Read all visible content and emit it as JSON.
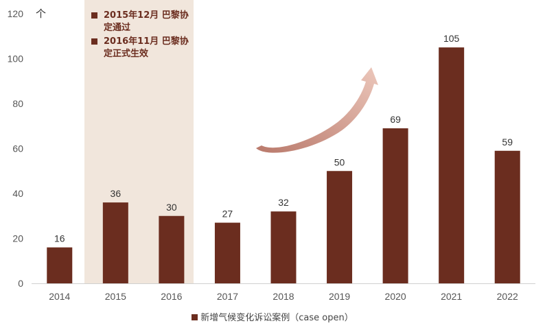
{
  "chart_data": {
    "type": "bar",
    "title": "",
    "xlabel": "",
    "ylabel": "",
    "y_unit": "个",
    "ylim": [
      0,
      120
    ],
    "yticks": [
      "0",
      "20",
      "40",
      "60",
      "80",
      "100",
      "120"
    ],
    "categories": [
      "2014",
      "2015",
      "2016",
      "2017",
      "2018",
      "2019",
      "2020",
      "2021",
      "2022"
    ],
    "series": [
      {
        "name": "新增气候变化诉讼案例（case open）",
        "values": [
          16,
          36,
          30,
          27,
          32,
          50,
          69,
          105,
          59
        ]
      }
    ],
    "legend_position": "bottom",
    "grid": false,
    "highlight_range": [
      "2015",
      "2016"
    ],
    "annotations": [
      "2015年12月 巴黎协定通过",
      "2016年11月 巴黎协定正式生效"
    ]
  },
  "colors": {
    "bar": "#6b2d1f",
    "highlight": "#f1e6dc",
    "arrow": "#c9968a"
  }
}
